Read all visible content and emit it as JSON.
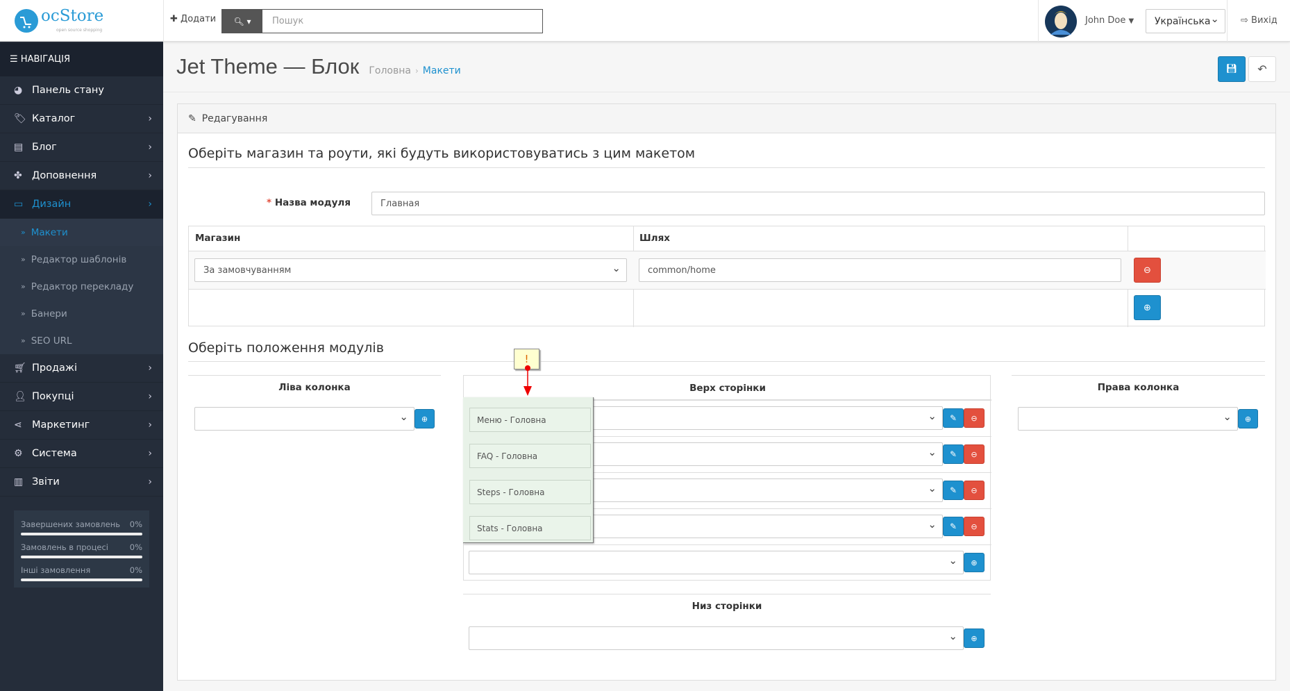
{
  "header": {
    "logo_text": "ocStore",
    "logo_tagline": "open source shopping",
    "add_label": "Додати",
    "search_placeholder": "Пошук",
    "user_name": "John Doe",
    "language": "Українська",
    "logout_label": "Вихід"
  },
  "sidebar": {
    "nav_title": "НАВІГАЦІЯ",
    "items": [
      {
        "label": "Панель стану",
        "icon": "dashboard-icon"
      },
      {
        "label": "Каталог",
        "icon": "tags-icon"
      },
      {
        "label": "Блог",
        "icon": "book-icon"
      },
      {
        "label": "Доповнення",
        "icon": "puzzle-icon"
      },
      {
        "label": "Дизайн",
        "icon": "monitor-icon"
      },
      {
        "label": "Продажі",
        "icon": "cart-icon"
      },
      {
        "label": "Покупці",
        "icon": "user-icon"
      },
      {
        "label": "Маркетинг",
        "icon": "share-icon"
      },
      {
        "label": "Система",
        "icon": "gear-icon"
      },
      {
        "label": "Звіти",
        "icon": "bar-chart-icon"
      }
    ],
    "design_submenu": [
      "Макети",
      "Редактор шаблонів",
      "Редактор перекладу",
      "Банери",
      "SEO URL"
    ],
    "stats": [
      {
        "label": "Завершених замовлень",
        "value": "0%"
      },
      {
        "label": "Замовлень в процесі",
        "value": "0%"
      },
      {
        "label": "Інші замовлення",
        "value": "0%"
      }
    ]
  },
  "page": {
    "title": "Jet Theme — Блок",
    "breadcrumb": [
      "Головна",
      "Макети"
    ]
  },
  "panel": {
    "heading": "Редагування",
    "legend1": "Оберіть магазин та роути, які будуть використовуватись з цим макетом",
    "name_label": "Назва модуля",
    "name_value": "Главная",
    "table": {
      "col_store": "Магазин",
      "col_route": "Шлях",
      "store_value": "За замовчуванням",
      "route_value": "common/home"
    },
    "legend2": "Оберіть положення модулів",
    "left_title": "Ліва колонка",
    "top_title": "Верх сторінки",
    "right_title": "Права колонка",
    "bottom_title": "Низ сторінки",
    "top_modules": [
      "Меню - Головна",
      "FAQ - Головна",
      "Steps - Головна",
      "Stats - Головна"
    ],
    "note_mark": "!"
  },
  "colors": {
    "accent": "#1e91cf",
    "danger": "#e3503e",
    "sidebar": "#252d3a"
  }
}
